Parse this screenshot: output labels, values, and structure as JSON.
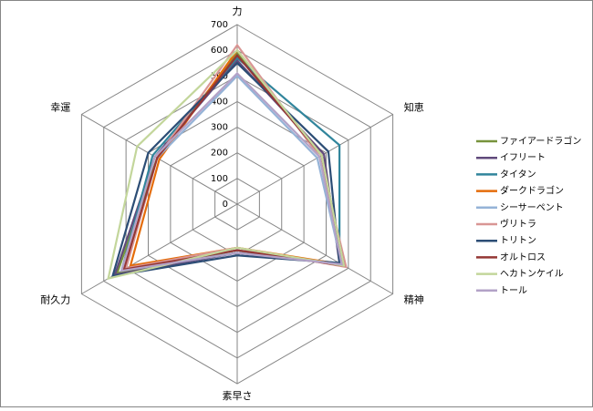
{
  "chart_data": {
    "type": "radar",
    "categories": [
      "力",
      "知恵",
      "精神",
      "素早さ",
      "耐久力",
      "幸運"
    ],
    "rlim": [
      0,
      700
    ],
    "rticks": [
      0,
      100,
      200,
      300,
      400,
      500,
      600,
      700
    ],
    "grid": true,
    "legend": "right",
    "series": [
      {
        "name": "ファイアードラゴン",
        "color": "#77933c",
        "values": [
          590,
          380,
          470,
          180,
          540,
          360
        ]
      },
      {
        "name": "イフリート",
        "color": "#604a7b",
        "values": [
          560,
          390,
          460,
          190,
          550,
          370
        ]
      },
      {
        "name": "タイタン",
        "color": "#31859c",
        "values": [
          570,
          460,
          460,
          190,
          520,
          380
        ]
      },
      {
        "name": "ダークドラゴン",
        "color": "#e46c0a",
        "values": [
          600,
          380,
          470,
          170,
          480,
          350
        ]
      },
      {
        "name": "シーサーペント",
        "color": "#95b3d7",
        "values": [
          500,
          360,
          470,
          180,
          500,
          360
        ]
      },
      {
        "name": "ヴリトラ",
        "color": "#d99694",
        "values": [
          620,
          370,
          490,
          170,
          500,
          360
        ]
      },
      {
        "name": "トリトン",
        "color": "#2c4d75",
        "values": [
          550,
          410,
          460,
          200,
          560,
          400
        ]
      },
      {
        "name": "オルトロス",
        "color": "#953735",
        "values": [
          580,
          380,
          480,
          180,
          510,
          360
        ]
      },
      {
        "name": "ヘカトンケイル",
        "color": "#c3d69b",
        "values": [
          600,
          380,
          480,
          170,
          580,
          450
        ]
      },
      {
        "name": "トール",
        "color": "#b3a2c7",
        "values": [
          510,
          370,
          470,
          190,
          520,
          370
        ]
      }
    ]
  }
}
